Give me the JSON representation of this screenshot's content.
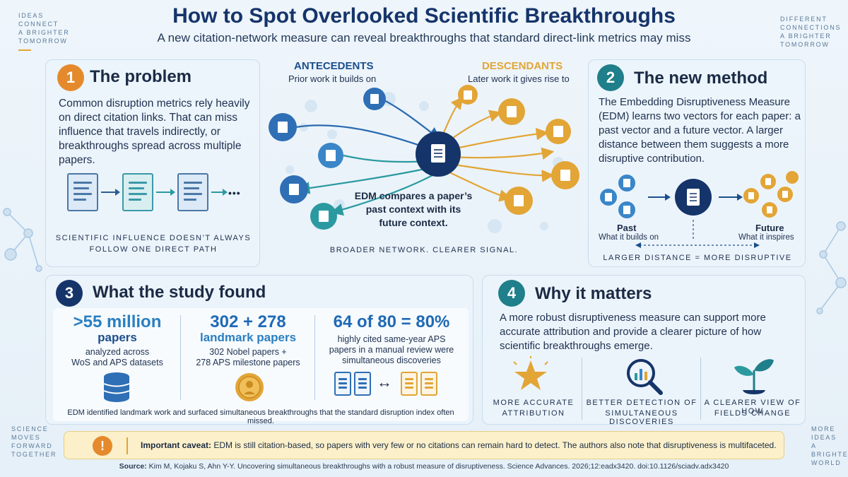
{
  "header": {
    "title": "How to Spot Overlooked Scientific Breakthroughs",
    "subtitle": "A new citation-network measure can reveal breakthroughs that standard direct-link metrics may miss"
  },
  "corners": {
    "top_left": [
      "IDEAS",
      "CONNECT",
      "A BRIGHTER",
      "TOMORROW"
    ],
    "top_right": [
      "DIFFERENT",
      "CONNECTIONS",
      "A BRIGHTER",
      "TOMORROW"
    ],
    "bottom_left": [
      "SCIENCE",
      "MOVES",
      "FORWARD",
      "TOGETHER"
    ],
    "bottom_right": [
      "MORE",
      "IDEAS",
      "A BRIGHTER",
      "WORLD"
    ]
  },
  "problem": {
    "number": "1",
    "title": "The problem",
    "text": "Common disruption metrics rely heavily on direct citation links. That can miss influence that travels indirectly, or breakthroughs spread across multiple papers.",
    "ellipsis": "•••",
    "caption_line1": "SCIENTIFIC INFLUENCE DOESN’T ALWAYS",
    "caption_line2": "FOLLOW ONE DIRECT PATH"
  },
  "network": {
    "antecedents_label": "ANTECEDENTS",
    "antecedents_sub": "Prior work it builds on",
    "descendants_label": "DESCENDANTS",
    "descendants_sub": "Later work it gives rise to",
    "center_text_1": "EDM compares a paper’s",
    "center_text_2": "past context with its",
    "center_text_3": "future context.",
    "footer": "BROADER NETWORK. CLEARER SIGNAL."
  },
  "method": {
    "number": "2",
    "title": "The new method",
    "text": "The Embedding Disruptiveness Measure (EDM) learns two vectors for each paper: a past vector and a future vector. A larger distance between them suggests a more disruptive contribution.",
    "past_label": "Past",
    "past_sub": "What it builds on",
    "future_label": "Future",
    "future_sub": "What it inspires",
    "distance_caption": "LARGER DISTANCE = MORE DISRUPTIVE"
  },
  "findings": {
    "number": "3",
    "title": "What the study found",
    "stats": [
      {
        "big": ">55 million",
        "mid": "papers",
        "line1": "analyzed across",
        "line2": "WoS and APS datasets"
      },
      {
        "big": "302 + 278",
        "mid": "landmark papers",
        "line1": "302 Nobel papers +",
        "line2": "278 APS milestone papers"
      },
      {
        "big": "64 of 80 = 80%",
        "mid": "",
        "line1": "highly cited same-year APS",
        "line2": "papers in a manual review were",
        "line3": "simultaneous discoveries"
      }
    ],
    "footer": "EDM identified landmark work and surfaced simultaneous breakthroughs that the standard disruption index often missed.",
    "swap_arrow": "↔"
  },
  "matters": {
    "number": "4",
    "title": "Why it matters",
    "text": "A more robust disruptiveness measure can support more accurate attribution and provide a clearer picture of how scientific breakthroughs emerge.",
    "items": [
      {
        "line1": "MORE ACCURATE",
        "line2": "ATTRIBUTION"
      },
      {
        "line1": "BETTER DETECTION OF",
        "line2": "SIMULTANEOUS DISCOVERIES"
      },
      {
        "line1": "A CLEARER VIEW OF HOW",
        "line2": "FIELDS CHANGE"
      }
    ]
  },
  "caveat": {
    "icon": "!",
    "label": "Important caveat:",
    "text": " EDM is still citation-based, so papers with very few or no citations can remain hard to detect. The authors also note that disruptiveness is multifaceted."
  },
  "source": {
    "label": "Source:",
    "text": " Kim M, Kojaku S, Ahn Y-Y. Uncovering simultaneous breakthroughs with a robust measure of disruptiveness. Science Advances. 2026;12:eadx3420. doi:10.1126/sciadv.adx3420"
  },
  "colors": {
    "navy": "#15346a",
    "blue": "#3a86c8",
    "teal": "#2a9aa0",
    "gold": "#e2a536",
    "orange": "#e58a2c"
  }
}
